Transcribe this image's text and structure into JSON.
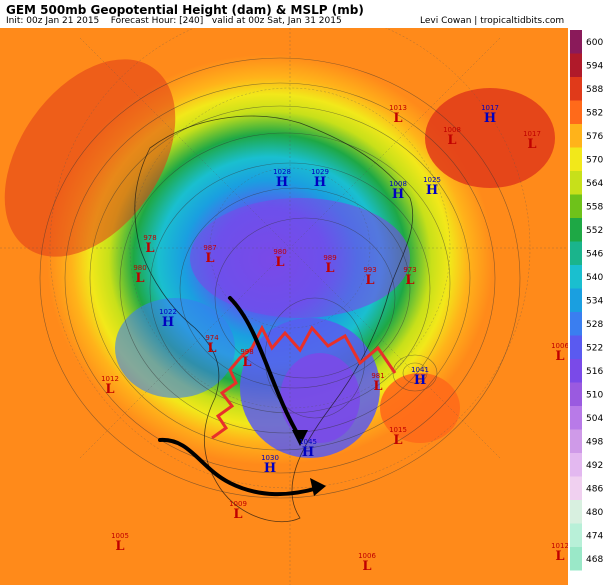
{
  "header": {
    "title": "GEM 500mb Geopotential Height (dam) & MSLP (mb)",
    "init": "Init: 00z Jan 21 2015",
    "forecast_hour": "Forecast Hour: [240]",
    "valid": "valid at 00z Sat, Jan 31 2015",
    "credit": "Levi Cowan | tropicaltidbits.com"
  },
  "colorbar": {
    "levels": [
      "600",
      "594",
      "588",
      "582",
      "576",
      "570",
      "564",
      "558",
      "552",
      "546",
      "540",
      "534",
      "528",
      "522",
      "516",
      "510",
      "504",
      "498",
      "492",
      "486",
      "480",
      "474",
      "468"
    ],
    "colors": [
      "#8a1a5a",
      "#b01a2a",
      "#e03a1a",
      "#ff6a1a",
      "#ffb31a",
      "#f2e81a",
      "#c7e01a",
      "#6ec21a",
      "#1ea845",
      "#1ab48c",
      "#1abfcf",
      "#1a9fe0",
      "#3a7ef0",
      "#5a5af0",
      "#7a4ae8",
      "#9a5ae0",
      "#b87ae8",
      "#cf9ae8",
      "#e3b8f0",
      "#f0d0f0",
      "#d8f0e0",
      "#b8f0d8",
      "#9ae8c8"
    ]
  },
  "pressure_centers": [
    {
      "type": "L",
      "value": "1013",
      "color": "#c00000"
    },
    {
      "type": "L",
      "value": "1017",
      "color": "#c00000"
    },
    {
      "type": "H",
      "value": "1017",
      "color": "#0000c0"
    },
    {
      "type": "L",
      "value": "1008",
      "color": "#c00000"
    },
    {
      "type": "H",
      "value": "1025",
      "color": "#0000c0"
    },
    {
      "type": "H",
      "value": "1008",
      "color": "#0000c0"
    },
    {
      "type": "H",
      "value": "1028",
      "color": "#0000c0"
    },
    {
      "type": "H",
      "value": "1029",
      "color": "#0000c0"
    },
    {
      "type": "L",
      "value": "978",
      "color": "#c00000"
    },
    {
      "type": "L",
      "value": "980",
      "color": "#c00000"
    },
    {
      "type": "L",
      "value": "987",
      "color": "#c00000"
    },
    {
      "type": "L",
      "value": "980",
      "color": "#c00000"
    },
    {
      "type": "L",
      "value": "989",
      "color": "#c00000"
    },
    {
      "type": "L",
      "value": "993",
      "color": "#c00000"
    },
    {
      "type": "L",
      "value": "973",
      "color": "#c00000"
    },
    {
      "type": "H",
      "value": "1022",
      "color": "#0000c0"
    },
    {
      "type": "L",
      "value": "974",
      "color": "#c00000"
    },
    {
      "type": "L",
      "value": "998",
      "color": "#c00000"
    },
    {
      "type": "H",
      "value": "1030",
      "color": "#0000c0"
    },
    {
      "type": "L",
      "value": "981",
      "color": "#c00000"
    },
    {
      "type": "H",
      "value": "1041",
      "color": "#0000c0"
    },
    {
      "type": "L",
      "value": "1015",
      "color": "#c00000"
    },
    {
      "type": "H",
      "value": "1045",
      "color": "#0000c0"
    },
    {
      "type": "L",
      "value": "1005",
      "color": "#c00000"
    },
    {
      "type": "L",
      "value": "1009",
      "color": "#c00000"
    },
    {
      "type": "L",
      "value": "1012",
      "color": "#c00000"
    },
    {
      "type": "L",
      "value": "1006",
      "color": "#c00000"
    },
    {
      "type": "L",
      "value": "1012",
      "color": "#c00000"
    },
    {
      "type": "L",
      "value": "1006",
      "color": "#c00000"
    }
  ],
  "annotations": {
    "ridge_color": "#e8302a",
    "arrow_color": "#000000"
  }
}
